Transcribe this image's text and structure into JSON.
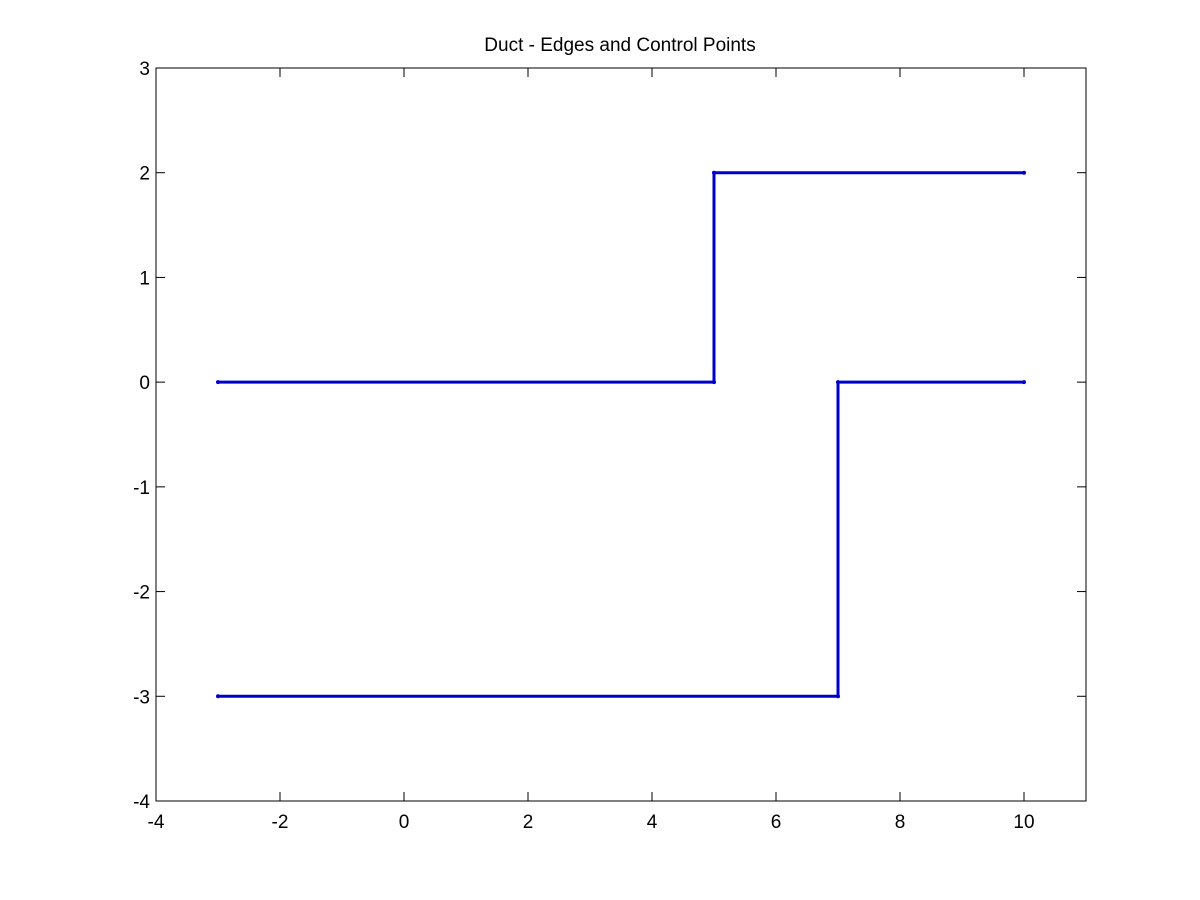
{
  "chart_data": {
    "type": "line",
    "title": "Duct - Edges and Control Points",
    "xlabel": "",
    "ylabel": "",
    "xlim": [
      -4,
      11
    ],
    "ylim": [
      -4,
      3
    ],
    "grid": false,
    "x_ticks": [
      -4,
      -2,
      0,
      2,
      4,
      6,
      8,
      10
    ],
    "y_ticks": [
      -4,
      -3,
      -2,
      -1,
      0,
      1,
      2,
      3
    ],
    "x_tick_labels": [
      "-4",
      "-2",
      "0",
      "2",
      "4",
      "6",
      "8",
      "10"
    ],
    "y_tick_labels": [
      "-4",
      "-3",
      "-2",
      "-1",
      "0",
      "1",
      "2",
      "3"
    ],
    "line_color": "#0000cc",
    "series": [
      {
        "x": [
          -3,
          5,
          5,
          10
        ],
        "y": [
          0,
          0,
          2,
          2
        ]
      },
      {
        "x": [
          -3,
          7,
          7,
          10
        ],
        "y": [
          -3,
          -3,
          0,
          0
        ]
      }
    ]
  }
}
